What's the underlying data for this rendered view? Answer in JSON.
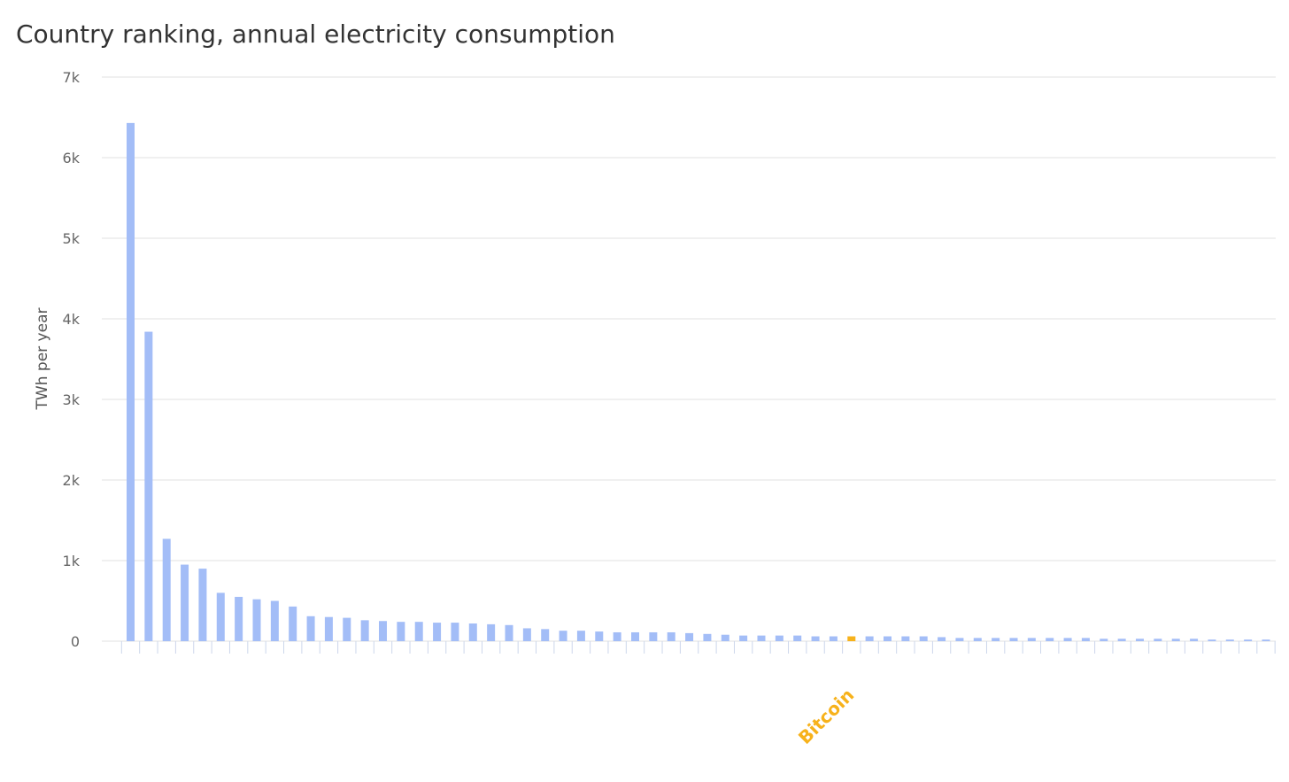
{
  "chart_data": {
    "type": "bar",
    "title": "Country ranking, annual electricity consumption",
    "ylabel": "TWh per year",
    "xlabel": "",
    "ylim": [
      0,
      7000
    ],
    "yticks": [
      0,
      1000,
      2000,
      3000,
      4000,
      5000,
      6000,
      7000
    ],
    "ytick_labels": [
      "0",
      "1k",
      "2k",
      "3k",
      "4k",
      "5k",
      "6k",
      "7k"
    ],
    "grid": true,
    "bar_color": "#a3bdf7",
    "highlight_color": "#f7b21b",
    "highlight_index": 40,
    "highlight_label": "Bitcoin",
    "values": [
      6430,
      3840,
      1270,
      950,
      900,
      600,
      550,
      520,
      500,
      430,
      310,
      300,
      290,
      260,
      250,
      240,
      240,
      230,
      230,
      220,
      210,
      200,
      160,
      150,
      130,
      130,
      120,
      110,
      110,
      110,
      110,
      100,
      90,
      80,
      70,
      70,
      70,
      70,
      60,
      60,
      60,
      60,
      60,
      60,
      60,
      50,
      40,
      40,
      40,
      40,
      40,
      40,
      40,
      40,
      30,
      30,
      30,
      30,
      30,
      30,
      20,
      20,
      20,
      20
    ]
  }
}
